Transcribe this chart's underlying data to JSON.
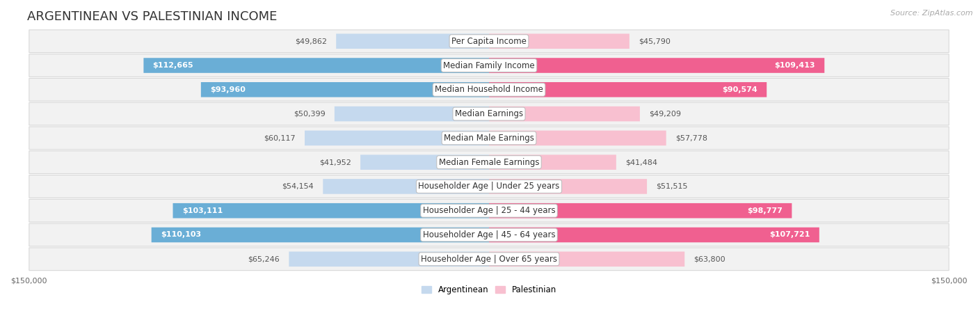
{
  "title": "ARGENTINEAN VS PALESTINIAN INCOME",
  "source": "Source: ZipAtlas.com",
  "max_value": 150000,
  "categories": [
    "Per Capita Income",
    "Median Family Income",
    "Median Household Income",
    "Median Earnings",
    "Median Male Earnings",
    "Median Female Earnings",
    "Householder Age | Under 25 years",
    "Householder Age | 25 - 44 years",
    "Householder Age | 45 - 64 years",
    "Householder Age | Over 65 years"
  ],
  "argentinean_values": [
    49862,
    112665,
    93960,
    50399,
    60117,
    41952,
    54154,
    103111,
    110103,
    65246
  ],
  "palestinian_values": [
    45790,
    109413,
    90574,
    49209,
    57778,
    41484,
    51515,
    98777,
    107721,
    63800
  ],
  "arg_light_color": "#c5d9ee",
  "arg_dark_color": "#6aaed6",
  "pal_light_color": "#f8c0d0",
  "pal_dark_color": "#f06090",
  "row_bg": "#f2f2f2",
  "row_border": "#d8d8d8",
  "label_bg": "#ffffff",
  "bar_height": 0.62,
  "title_fontsize": 13,
  "label_fontsize": 8.5,
  "value_fontsize": 8,
  "inside_threshold": 70000,
  "legend_argentinean": "Argentinean",
  "legend_palestinian": "Palestinian",
  "background_color": "#ffffff"
}
